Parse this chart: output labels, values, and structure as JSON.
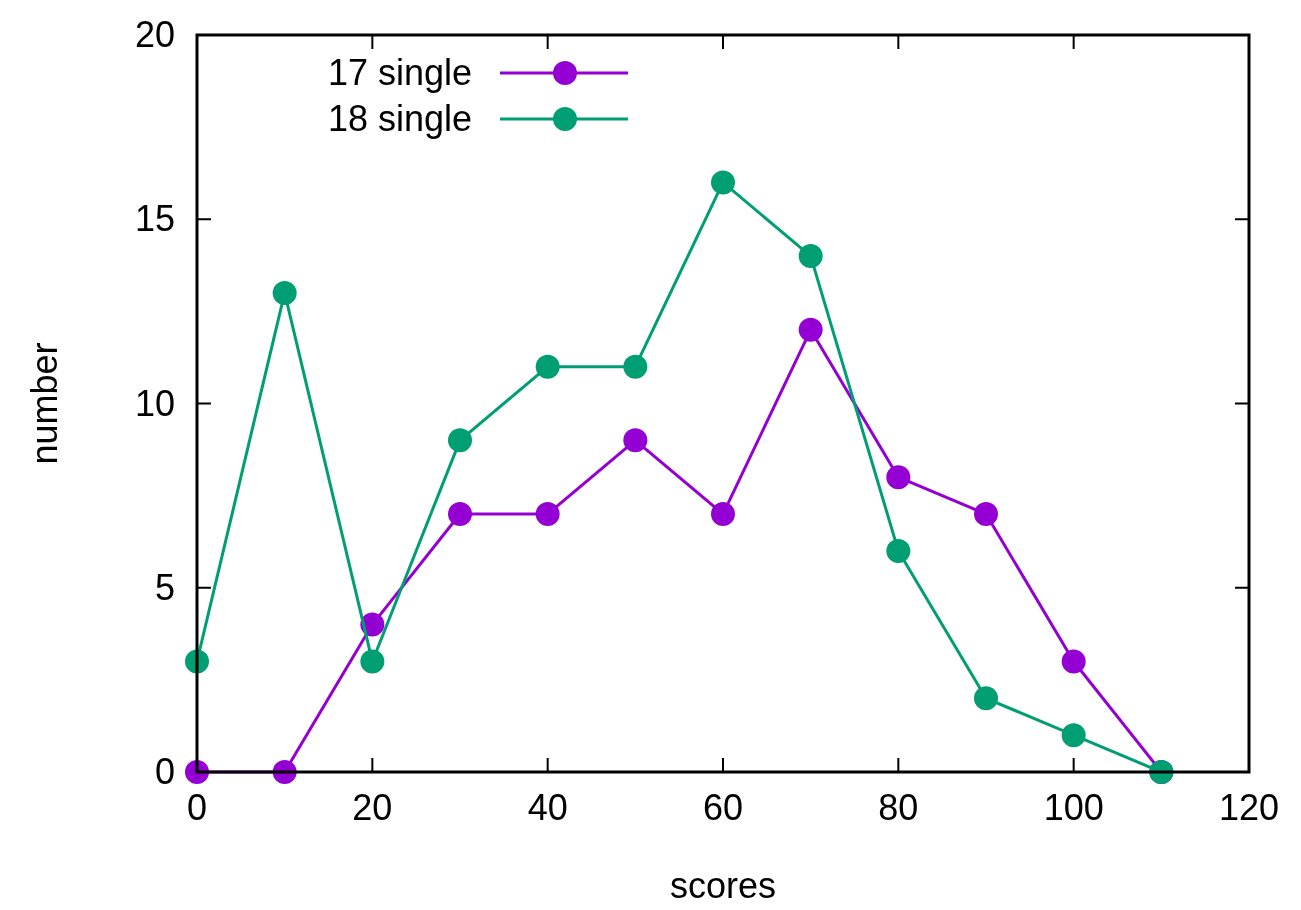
{
  "chart_data": {
    "type": "line",
    "xlabel": "scores",
    "ylabel": "number",
    "x": [
      0,
      10,
      20,
      30,
      40,
      50,
      60,
      70,
      80,
      90,
      100,
      110
    ],
    "series": [
      {
        "name": "17 single",
        "color": "#9400d3",
        "values": [
          0,
          0,
          4,
          7,
          7,
          9,
          7,
          12,
          8,
          7,
          3,
          0
        ]
      },
      {
        "name": "18 single",
        "color": "#009e73",
        "values": [
          3,
          13,
          3,
          9,
          11,
          11,
          16,
          14,
          6,
          2,
          1,
          0
        ]
      }
    ],
    "xlim": [
      0,
      120
    ],
    "xticks": [
      0,
      20,
      40,
      60,
      80,
      100,
      120
    ],
    "ylim": [
      0,
      20
    ],
    "yticks": [
      0,
      5,
      10,
      15,
      20
    ],
    "grid": false,
    "legend": "top left",
    "marker": "circle",
    "line_style": "solid"
  }
}
